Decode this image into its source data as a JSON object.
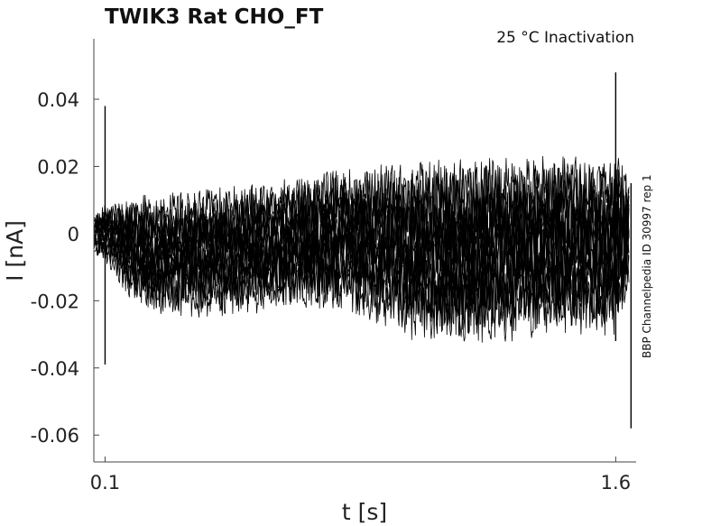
{
  "chart_data": {
    "type": "line",
    "title": "TWIK3  Rat  CHO_FT",
    "annotation": "25 °C  Inactivation",
    "side_label": "BBP Channelpedia ID 30997 rep 1",
    "xlabel": "t [s]",
    "ylabel": "I [nA]",
    "x_ticks": [
      0.1,
      1.6
    ],
    "x_tick_labels": [
      "0.1",
      "1.6"
    ],
    "y_ticks": [
      0.04,
      0.02,
      0,
      -0.02,
      -0.04,
      -0.06
    ],
    "y_tick_labels": [
      "0.04",
      "0.02",
      "0",
      "-0.02",
      "-0.04",
      "-0.06"
    ],
    "xlim": [
      0.067,
      1.66
    ],
    "ylim": [
      -0.068,
      0.058
    ],
    "grid": false,
    "legend": "none",
    "series_description": "Dense overlay of many noisy current sweeps centered near 0 nA",
    "events": [
      {
        "t": 0.1,
        "i_min": -0.039,
        "i_max": 0.038
      },
      {
        "t": 1.6,
        "i_min": -0.032,
        "i_max": 0.048
      },
      {
        "t": 1.645,
        "i_min": -0.058,
        "i_max": 0.015
      }
    ],
    "band": {
      "t": [
        0.067,
        0.1,
        0.2,
        0.4,
        0.6,
        0.8,
        1.0,
        1.2,
        1.4,
        1.6,
        1.64
      ],
      "upper": [
        0.006,
        0.01,
        0.013,
        0.015,
        0.018,
        0.021,
        0.024,
        0.025,
        0.026,
        0.026,
        0.02
      ],
      "lower": [
        -0.007,
        -0.01,
        -0.025,
        -0.027,
        -0.025,
        -0.024,
        -0.034,
        -0.036,
        -0.033,
        -0.033,
        -0.02
      ]
    }
  }
}
